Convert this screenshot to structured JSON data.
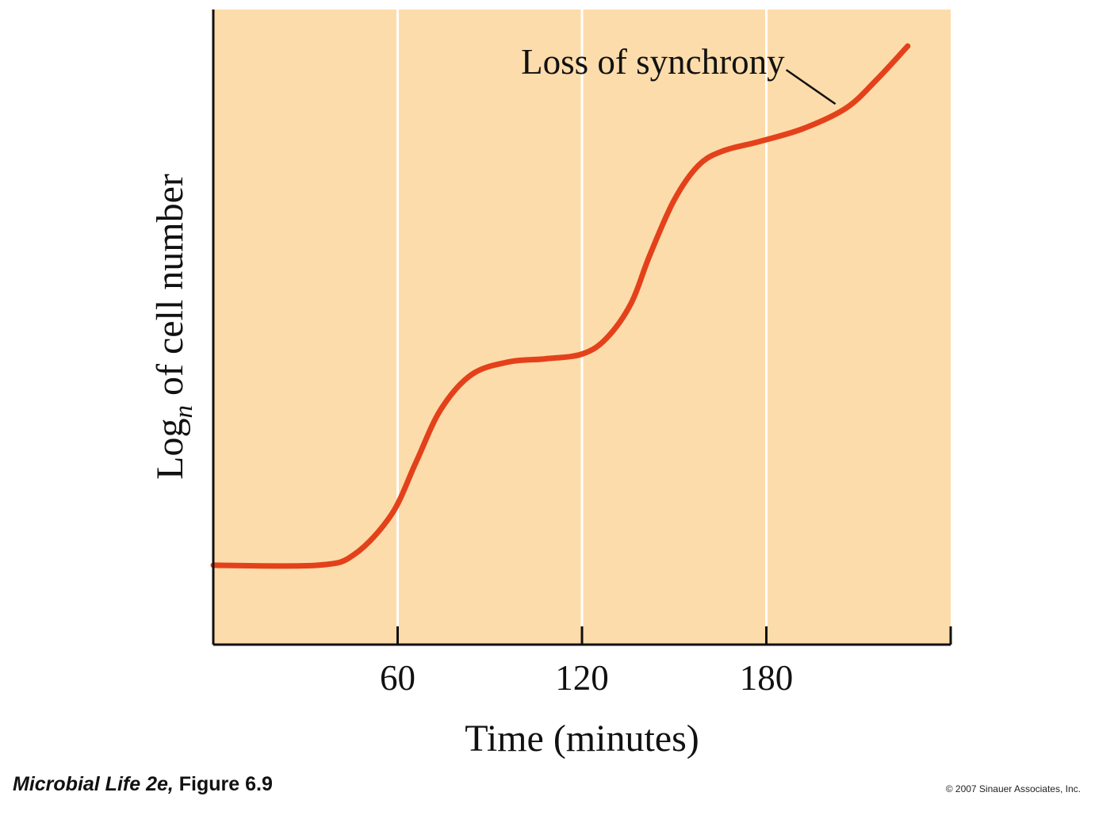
{
  "chart_data": {
    "type": "line",
    "xlabel": "Time (minutes)",
    "ylabel": {
      "base": "Log",
      "subscript": "n",
      "rest": " of cell number"
    },
    "xlim": [
      0,
      240
    ],
    "ylim": [
      0,
      4
    ],
    "x_ticks": [
      60,
      120,
      180
    ],
    "y_ticks": [],
    "grid": true,
    "series": [
      {
        "color": "#e4411b",
        "x": [
          0,
          34,
          46,
          58,
          66,
          74,
          84,
          96,
          108,
          120,
          128,
          136,
          142,
          150,
          158,
          166,
          178,
          192,
          206,
          216,
          226
        ],
        "y": [
          0.5,
          0.5,
          0.57,
          0.82,
          1.15,
          1.48,
          1.7,
          1.78,
          1.8,
          1.83,
          1.93,
          2.15,
          2.45,
          2.8,
          3.02,
          3.11,
          3.17,
          3.25,
          3.38,
          3.56,
          3.77
        ]
      }
    ],
    "annotations": [
      {
        "text": "Loss of synchrony",
        "x": 203,
        "y": 3.38
      }
    ]
  },
  "caption": {
    "italic": "Microbial Life 2e,",
    "rest": " Figure 6.9"
  },
  "copyright": "© 2007 Sinauer Associates, Inc."
}
